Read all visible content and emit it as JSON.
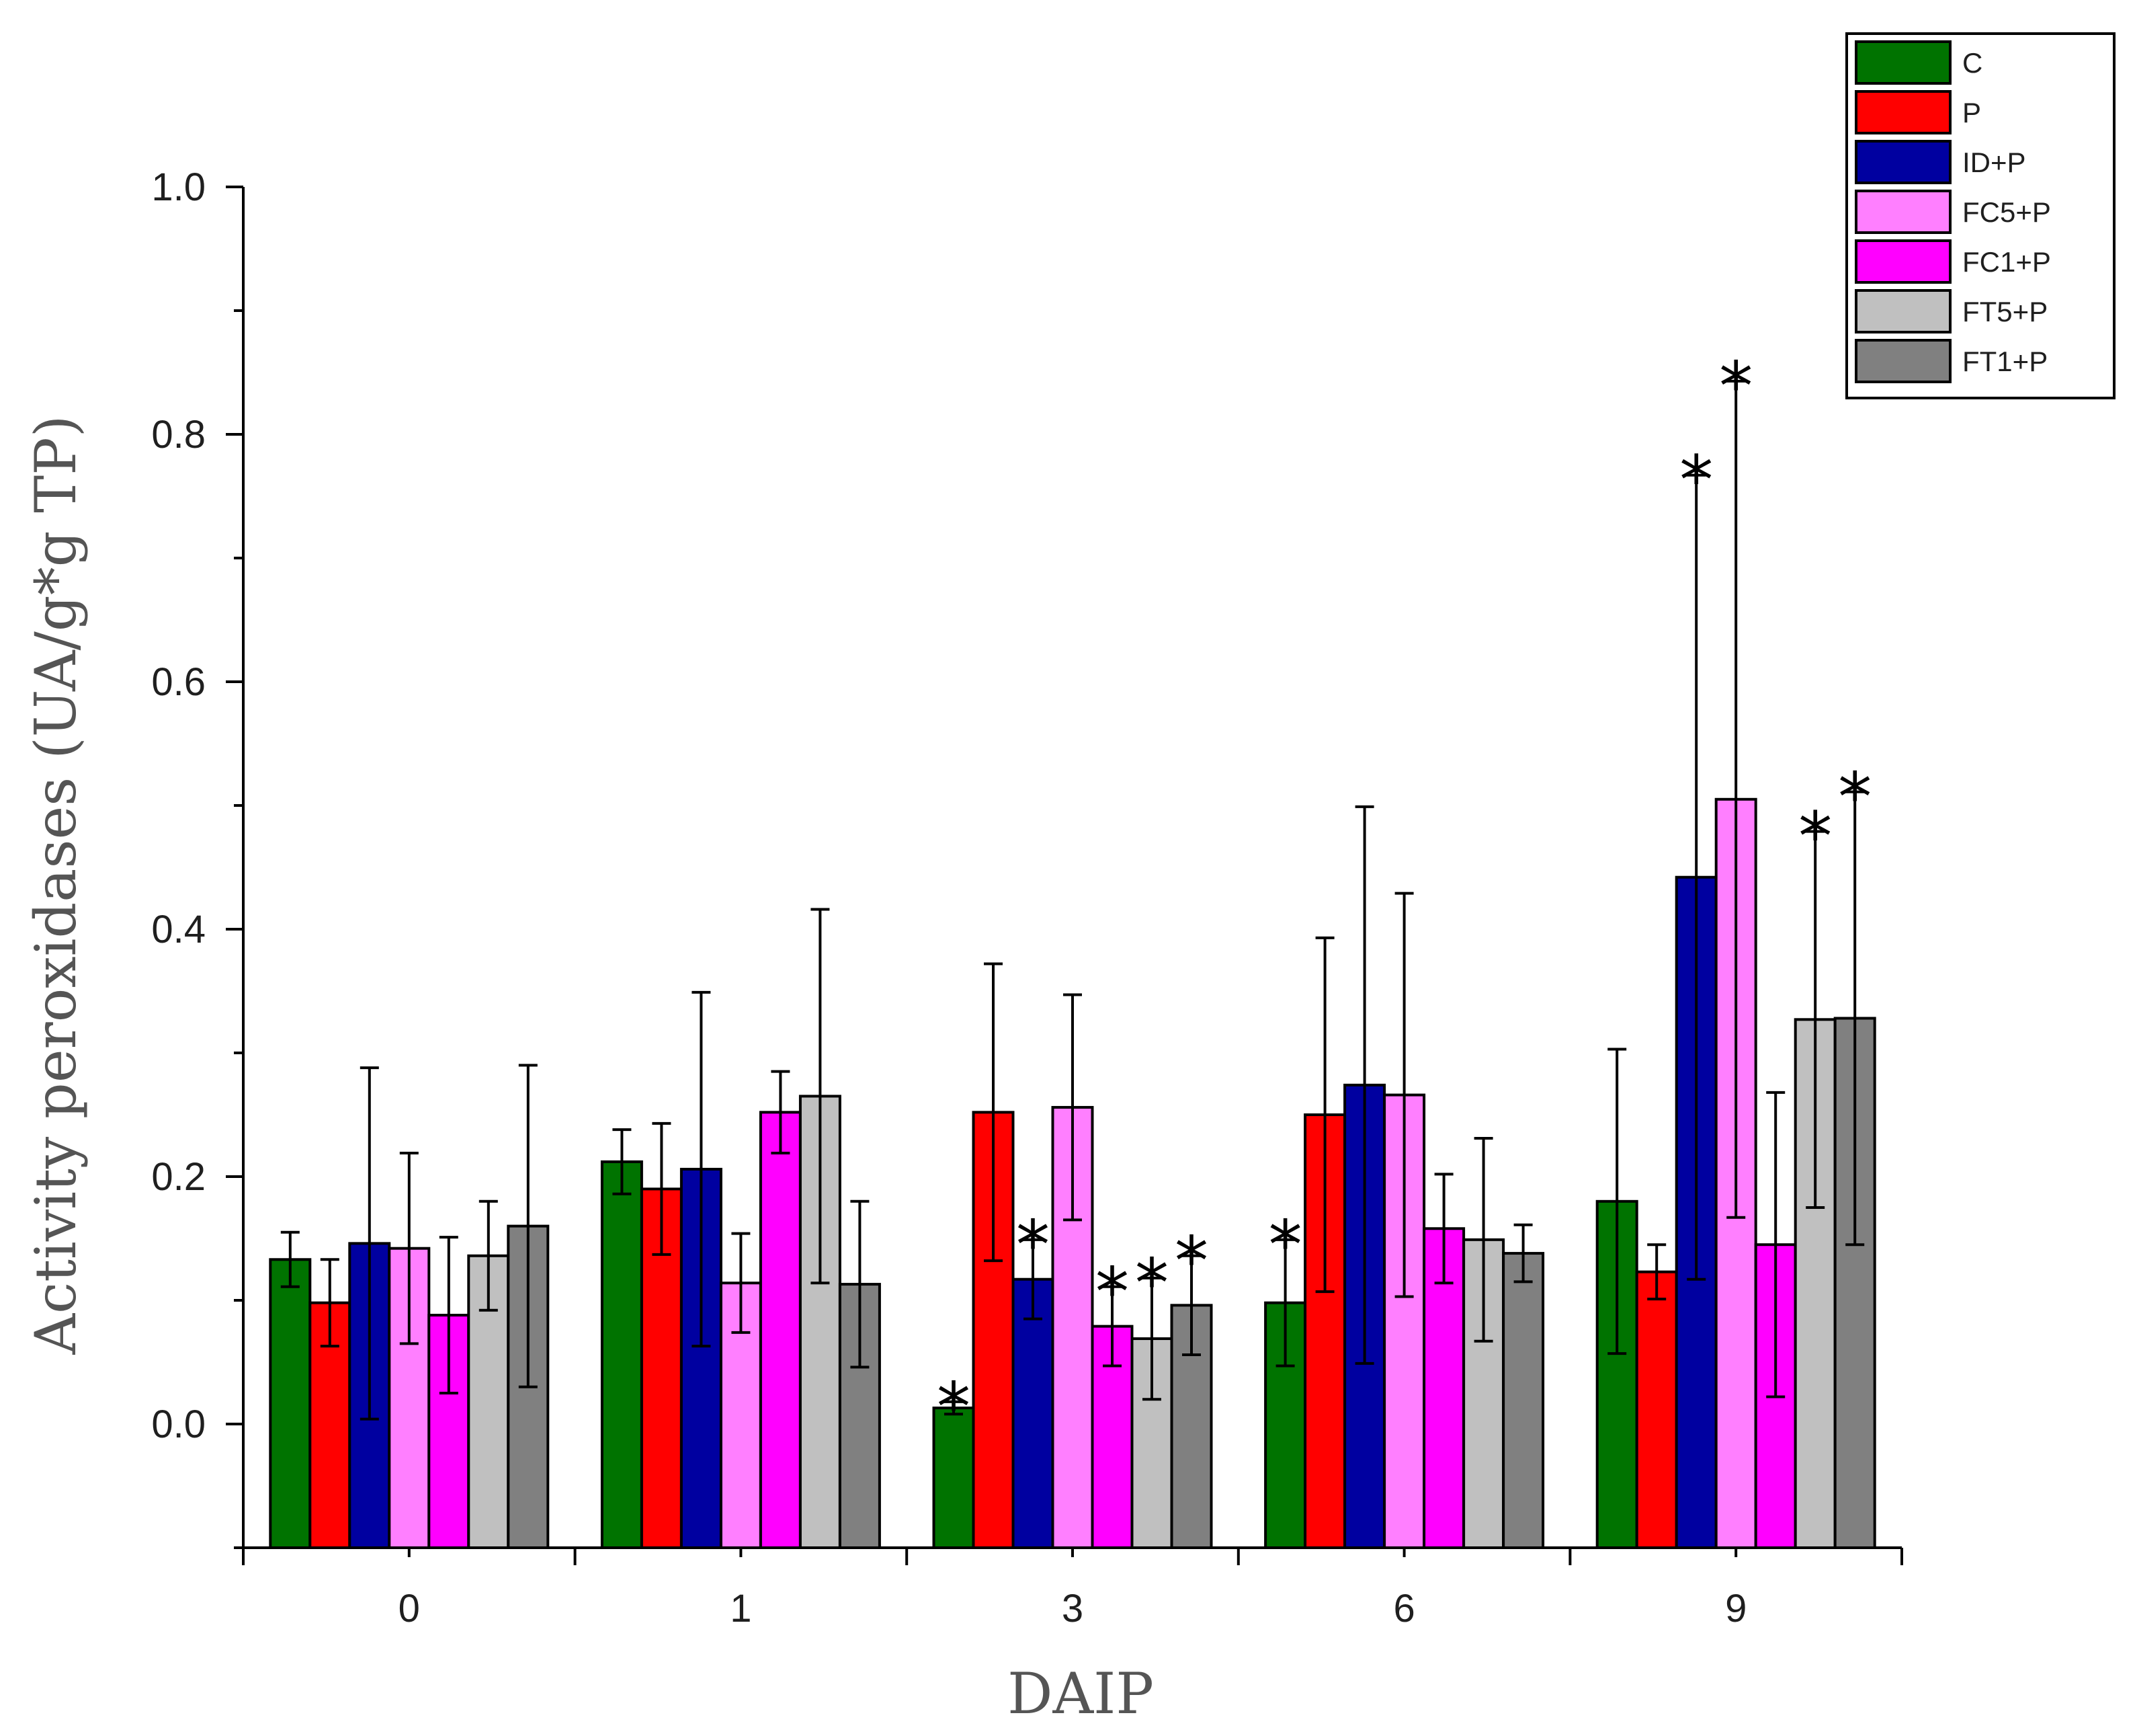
{
  "chart_data": {
    "type": "bar",
    "title": "",
    "xlabel": "DAIP",
    "ylabel": "Activity peroxidases (UA/g*g TP)",
    "ylim": [
      -0.1,
      1.0
    ],
    "yticks": [
      "0.0",
      "0.2",
      "0.4",
      "0.6",
      "0.8",
      "1.0"
    ],
    "categories": [
      "0",
      "1",
      "3",
      "6",
      "9"
    ],
    "legend_position": "top-right",
    "significance_marker": "*",
    "series": [
      {
        "name": "C",
        "color": "#007300",
        "values": [
          0.133,
          0.212,
          0.013,
          0.098,
          0.18
        ],
        "errors": [
          0.022,
          0.026,
          0.005,
          0.051,
          0.123
        ],
        "significant": [
          false,
          false,
          true,
          true,
          false
        ]
      },
      {
        "name": "P",
        "color": "#ff0000",
        "values": [
          0.098,
          0.19,
          0.252,
          0.25,
          0.123
        ],
        "errors": [
          0.035,
          0.053,
          0.12,
          0.143,
          0.022
        ],
        "significant": [
          false,
          false,
          false,
          false,
          false
        ]
      },
      {
        "name": "ID+P",
        "color": "#0000a0",
        "values": [
          0.146,
          0.206,
          0.117,
          0.274,
          0.442
        ],
        "errors": [
          0.142,
          0.143,
          0.032,
          0.225,
          0.325
        ],
        "significant": [
          false,
          false,
          true,
          false,
          true
        ]
      },
      {
        "name": "FC5+P",
        "color": "#ff7fff",
        "values": [
          0.142,
          0.114,
          0.256,
          0.266,
          0.505
        ],
        "errors": [
          0.077,
          0.04,
          0.091,
          0.163,
          0.338
        ],
        "significant": [
          false,
          false,
          false,
          false,
          true
        ]
      },
      {
        "name": "FC1+P",
        "color": "#ff00ff",
        "values": [
          0.088,
          0.252,
          0.079,
          0.158,
          0.145
        ],
        "errors": [
          0.063,
          0.033,
          0.032,
          0.044,
          0.123
        ],
        "significant": [
          false,
          false,
          true,
          false,
          false
        ]
      },
      {
        "name": "FT5+P",
        "color": "#c0c0c0",
        "values": [
          0.136,
          0.265,
          0.069,
          0.149,
          0.327
        ],
        "errors": [
          0.044,
          0.151,
          0.049,
          0.082,
          0.152
        ],
        "significant": [
          false,
          false,
          true,
          false,
          true
        ]
      },
      {
        "name": "FT1+P",
        "color": "#808080",
        "values": [
          0.16,
          0.113,
          0.096,
          0.138,
          0.328
        ],
        "errors": [
          0.13,
          0.067,
          0.04,
          0.023,
          0.183
        ],
        "significant": [
          false,
          false,
          true,
          false,
          true
        ]
      }
    ]
  }
}
